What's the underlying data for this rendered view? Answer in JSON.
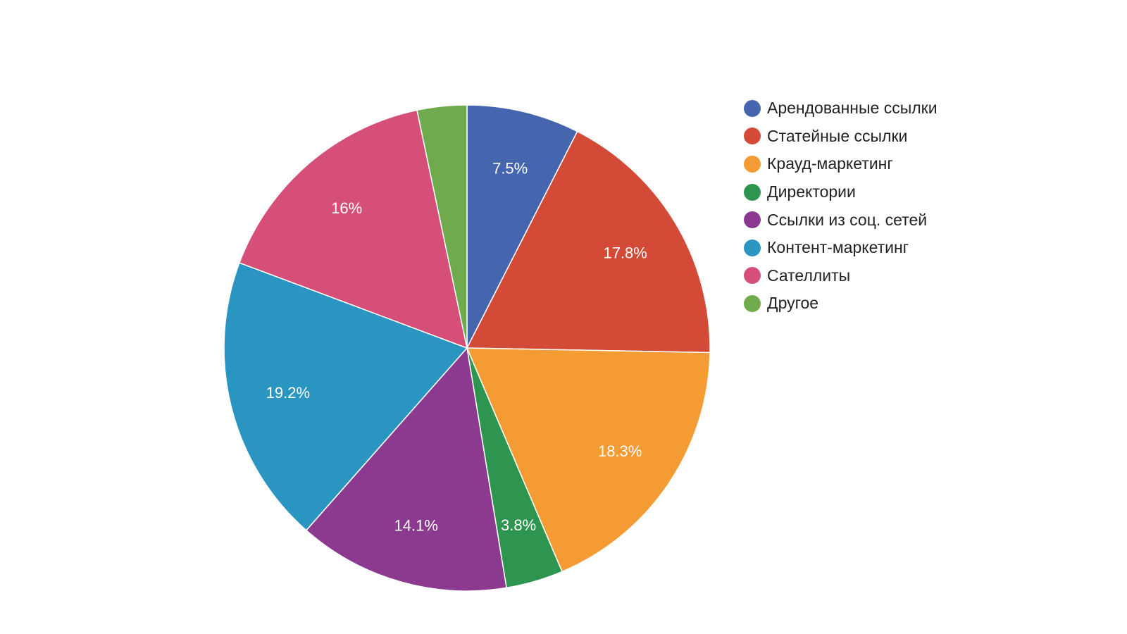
{
  "chart_data": {
    "type": "pie",
    "start_angle_deg": 0,
    "direction": "clockwise",
    "legend_position": "right",
    "slices": [
      {
        "label": "Арендованные ссылки",
        "value": 7.5,
        "display": "7.5%",
        "color": "#4566ae"
      },
      {
        "label": "Статейные ссылки",
        "value": 17.8,
        "display": "17.8%",
        "color": "#d34a36"
      },
      {
        "label": "Крауд-маркетинг",
        "value": 18.3,
        "display": "18.3%",
        "color": "#f59b34"
      },
      {
        "label": "Директории",
        "value": 3.8,
        "display": "3.8%",
        "color": "#2e9550"
      },
      {
        "label": "Ссылки из соц. сетей",
        "value": 14.1,
        "display": "14.1%",
        "color": "#8b3a8f"
      },
      {
        "label": "Контент-маркетинг",
        "value": 19.2,
        "display": "19.2%",
        "color": "#2a95c1"
      },
      {
        "label": "Сателлиты",
        "value": 16,
        "display": "16%",
        "color": "#d54f78"
      },
      {
        "label": "Другое",
        "value": 3.3,
        "display": "",
        "color": "#6faa4c"
      }
    ]
  }
}
